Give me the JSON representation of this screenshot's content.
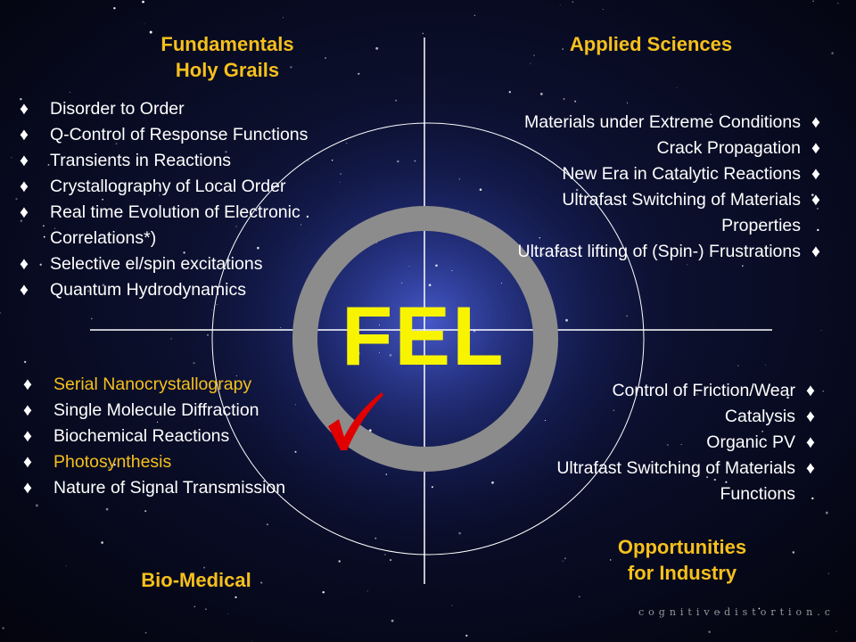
{
  "center": {
    "label": "FEL"
  },
  "quadrants": {
    "top_left": {
      "heading": [
        "Fundamentals",
        "Holy Grails"
      ],
      "items": [
        {
          "text": "Disorder to Order"
        },
        {
          "text": "Q-Control of Response Functions"
        },
        {
          "text": "Transients in Reactions"
        },
        {
          "text": "Crystallography of  Local Order"
        },
        {
          "text": "Real time Evolution of Electronic  ."
        },
        {
          "text": "Correlations*)",
          "continuation": true
        },
        {
          "text": "Selective el/spin excitations"
        },
        {
          "text": "Quantum Hydrodynamics"
        }
      ]
    },
    "top_right": {
      "heading": [
        "Applied Sciences"
      ],
      "items": [
        {
          "text": "Materials under Extreme  Conditions",
          "bullet": "♦"
        },
        {
          "text": "Crack Propagation",
          "bullet": "♦"
        },
        {
          "text": "New Era in Catalytic Reactions",
          "bullet": "♦"
        },
        {
          "text": "Ultrafast Switching of Materials",
          "bullet": "♦"
        },
        {
          "text": "Properties",
          "bullet": "."
        },
        {
          "text": "Ultrafast lifting of (Spin-) Frustrations",
          "bullet": "♦"
        }
      ]
    },
    "bottom_left": {
      "heading": [
        "Bio-Medical"
      ],
      "items": [
        {
          "text": "Serial Nanocrystallograpy",
          "highlight": true
        },
        {
          "text": "Single Molecule Diffraction"
        },
        {
          "text": "Biochemical Reactions"
        },
        {
          "text": "Photosynthesis",
          "highlight": true
        },
        {
          "text": "Nature of Signal Transmission"
        }
      ]
    },
    "bottom_right": {
      "heading": [
        "Opportunities",
        "for Industry"
      ],
      "items": [
        {
          "text": "Control of Friction/Wear",
          "bullet": "♦"
        },
        {
          "text": "Catalysis",
          "bullet": "♦"
        },
        {
          "text": "Organic PV",
          "bullet": "♦"
        },
        {
          "text": "Ultrafast Switching of Materials",
          "bullet": "♦"
        },
        {
          "text": "Functions",
          "bullet": "."
        }
      ]
    }
  },
  "bullet_symbol": "♦",
  "checkmark": "✓",
  "watermark": "cognitivedistortion.c",
  "colors": {
    "heading": "#f6c01c",
    "highlight": "#f6c01c",
    "center_text": "#f8f400",
    "ring": "#8c8c8c",
    "checkmark": "#e00000",
    "background": "#05060f"
  }
}
